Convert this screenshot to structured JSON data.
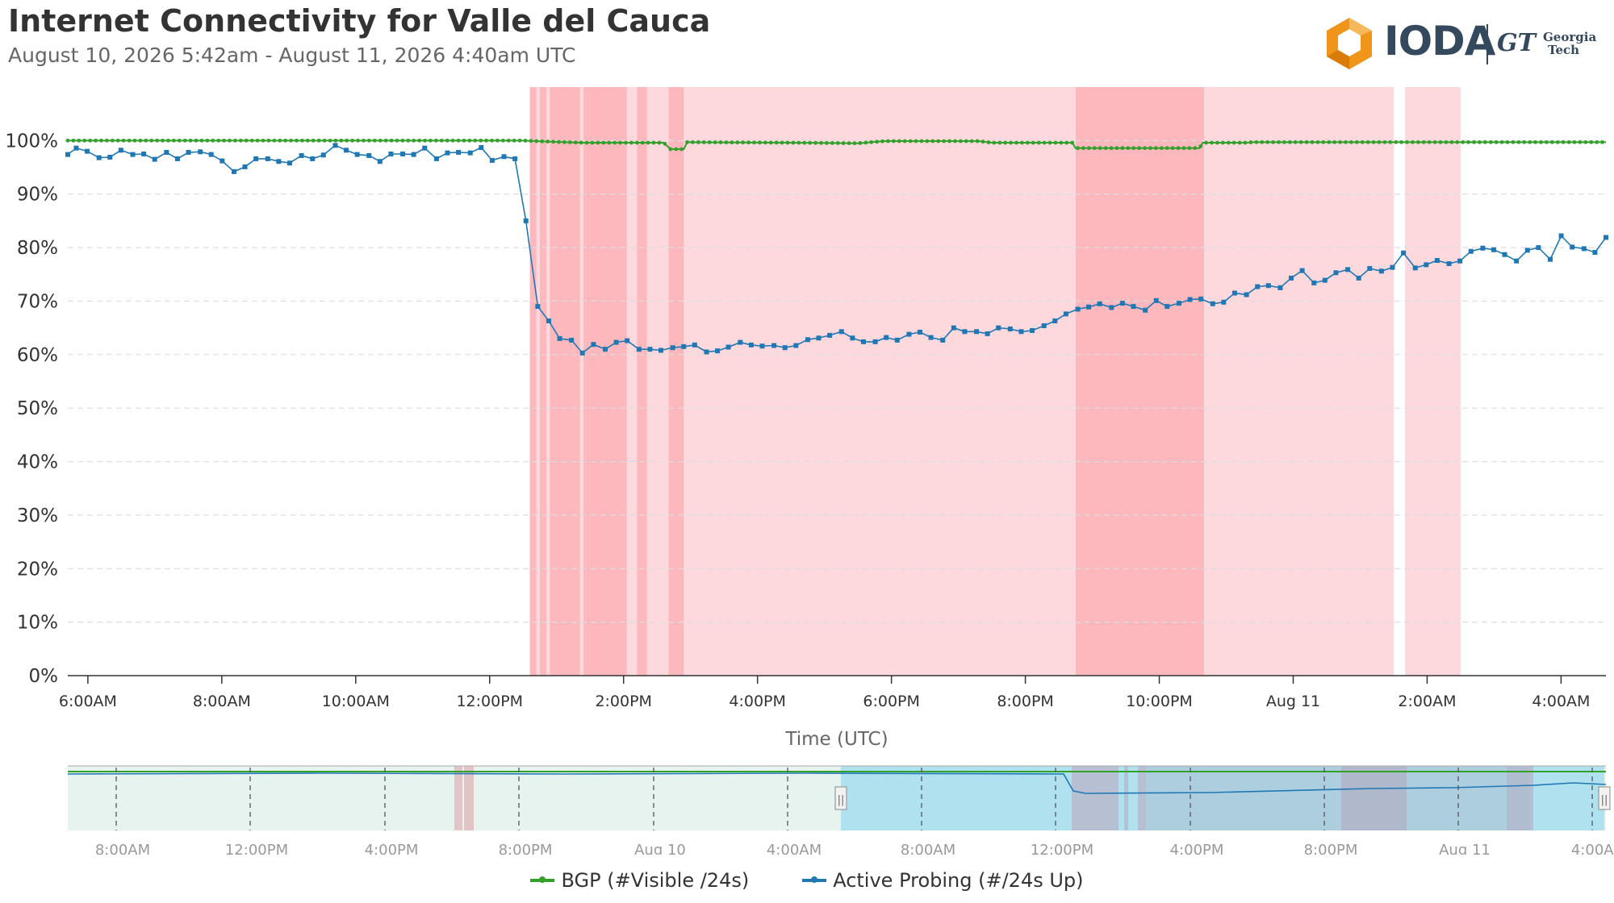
{
  "header": {
    "title": "Internet Connectivity for Valle del Cauca",
    "subtitle": "August 10, 2026 5:42am - August 11, 2026 4:40am UTC",
    "logo_text": "IODA",
    "partner_mark": "GT",
    "partner_name_line1": "Georgia",
    "partner_name_line2": "Tech"
  },
  "colors": {
    "bgp": "#33a02c",
    "active_probing": "#1f78b4",
    "outage_light": "#fdd8dc",
    "outage_dark": "#fdb8be",
    "navigator_band": "#e6f3ef",
    "navigator_selection": "#b0e1ef",
    "gridline": "#dddddd",
    "axis": "#333333",
    "logo_orange": "#f0951a"
  },
  "chart_data": {
    "type": "line",
    "title": "Internet Connectivity for Valle del Cauca",
    "subtitle": "August 10, 2026 5:42am - August 11, 2026 4:40am UTC",
    "xlabel": "Time (UTC)",
    "ylabel": "",
    "x_range_hours": [
      5.7,
      28.67
    ],
    "ylim": [
      0,
      110
    ],
    "y_ticks": [
      0,
      10,
      20,
      30,
      40,
      50,
      60,
      70,
      80,
      90,
      100
    ],
    "y_tick_labels": [
      "0%",
      "10%",
      "20%",
      "30%",
      "40%",
      "50%",
      "60%",
      "70%",
      "80%",
      "90%",
      "100%"
    ],
    "x_ticks": [
      6,
      8,
      10,
      12,
      14,
      16,
      18,
      20,
      22,
      24,
      26,
      28
    ],
    "x_tick_labels": [
      "6:00AM",
      "8:00AM",
      "10:00AM",
      "12:00PM",
      "2:00PM",
      "4:00PM",
      "6:00PM",
      "8:00PM",
      "10:00PM",
      "Aug 11",
      "2:00AM",
      "4:00AM"
    ],
    "grid": true,
    "legend_position": "bottom-center",
    "series": [
      {
        "name": "BGP (#Visible /24s)",
        "color": "#33a02c",
        "segments": [
          [
            5.7,
            100
          ],
          [
            12.5,
            100
          ],
          [
            12.9,
            99.8
          ],
          [
            13.4,
            99.6
          ],
          [
            14.6,
            99.6
          ],
          [
            14.7,
            98.4
          ],
          [
            14.9,
            98.4
          ],
          [
            14.95,
            99.7
          ],
          [
            16.5,
            99.6
          ],
          [
            17.5,
            99.5
          ],
          [
            17.9,
            99.9
          ],
          [
            19.3,
            99.9
          ],
          [
            19.5,
            99.6
          ],
          [
            20.7,
            99.6
          ],
          [
            20.75,
            98.6
          ],
          [
            22.6,
            98.6
          ],
          [
            22.65,
            99.6
          ],
          [
            23.3,
            99.6
          ],
          [
            23.4,
            99.7
          ],
          [
            28.67,
            99.7
          ]
        ]
      },
      {
        "name": "Active Probing (#/24s Up)",
        "color": "#1f78b4",
        "points": [
          [
            5.7,
            97.4
          ],
          [
            5.8,
            98.6
          ],
          [
            5.93,
            98.0
          ],
          [
            6.07,
            96.8
          ],
          [
            6.2,
            96.9
          ],
          [
            6.33,
            98.2
          ],
          [
            6.47,
            97.4
          ],
          [
            6.6,
            97.5
          ],
          [
            6.73,
            96.5
          ],
          [
            6.87,
            97.8
          ],
          [
            7.0,
            96.6
          ],
          [
            7.13,
            97.8
          ],
          [
            7.27,
            97.9
          ],
          [
            7.4,
            97.4
          ],
          [
            7.53,
            96.2
          ],
          [
            7.67,
            94.2
          ],
          [
            7.8,
            95.1
          ],
          [
            7.93,
            96.6
          ],
          [
            8.07,
            96.6
          ],
          [
            8.2,
            96.1
          ],
          [
            8.33,
            95.8
          ],
          [
            8.47,
            97.2
          ],
          [
            8.6,
            96.6
          ],
          [
            8.73,
            97.3
          ],
          [
            8.87,
            99.1
          ],
          [
            9.0,
            98.2
          ],
          [
            9.13,
            97.4
          ],
          [
            9.27,
            97.2
          ],
          [
            9.4,
            96.1
          ],
          [
            9.53,
            97.5
          ],
          [
            9.67,
            97.5
          ],
          [
            9.8,
            97.4
          ],
          [
            9.93,
            98.6
          ],
          [
            10.07,
            96.6
          ],
          [
            10.2,
            97.7
          ],
          [
            10.33,
            97.8
          ],
          [
            10.47,
            97.7
          ],
          [
            10.6,
            98.7
          ],
          [
            10.73,
            96.3
          ],
          [
            10.87,
            97.0
          ],
          [
            11.0,
            96.6
          ],
          [
            11.13,
            85.0
          ],
          [
            11.27,
            69.0
          ],
          [
            11.4,
            66.3
          ],
          [
            11.53,
            63.0
          ],
          [
            11.67,
            62.7
          ],
          [
            11.8,
            60.3
          ],
          [
            11.93,
            61.9
          ],
          [
            12.07,
            61.0
          ],
          [
            12.2,
            62.3
          ],
          [
            12.33,
            62.6
          ],
          [
            12.47,
            61.0
          ],
          [
            12.6,
            61.0
          ],
          [
            12.73,
            60.8
          ],
          [
            12.87,
            61.3
          ],
          [
            13.0,
            61.5
          ],
          [
            13.13,
            61.8
          ],
          [
            13.27,
            60.5
          ],
          [
            13.4,
            60.7
          ],
          [
            13.53,
            61.4
          ],
          [
            13.67,
            62.3
          ],
          [
            13.8,
            61.8
          ],
          [
            13.93,
            61.6
          ],
          [
            14.07,
            61.7
          ],
          [
            14.2,
            61.3
          ],
          [
            14.33,
            61.7
          ],
          [
            14.47,
            62.8
          ],
          [
            14.6,
            63.1
          ],
          [
            14.73,
            63.6
          ],
          [
            14.87,
            64.3
          ],
          [
            15.0,
            63.1
          ],
          [
            15.13,
            62.4
          ],
          [
            15.27,
            62.4
          ],
          [
            15.4,
            63.2
          ],
          [
            15.53,
            62.7
          ],
          [
            15.67,
            63.8
          ],
          [
            15.8,
            64.2
          ],
          [
            15.93,
            63.2
          ],
          [
            16.07,
            62.7
          ],
          [
            16.2,
            65.0
          ],
          [
            16.33,
            64.3
          ],
          [
            16.47,
            64.3
          ],
          [
            16.6,
            63.9
          ],
          [
            16.73,
            65.0
          ],
          [
            16.87,
            64.8
          ],
          [
            17.0,
            64.3
          ],
          [
            17.13,
            64.5
          ],
          [
            17.27,
            65.4
          ],
          [
            17.4,
            66.3
          ],
          [
            17.53,
            67.6
          ],
          [
            17.67,
            68.5
          ],
          [
            17.8,
            68.9
          ],
          [
            17.93,
            69.5
          ],
          [
            18.07,
            68.8
          ],
          [
            18.2,
            69.6
          ],
          [
            18.33,
            69.0
          ],
          [
            18.47,
            68.3
          ],
          [
            18.6,
            70.1
          ],
          [
            18.73,
            69.0
          ],
          [
            18.87,
            69.6
          ],
          [
            19.0,
            70.3
          ],
          [
            19.13,
            70.4
          ],
          [
            19.27,
            69.5
          ],
          [
            19.4,
            69.8
          ],
          [
            19.53,
            71.5
          ],
          [
            19.67,
            71.2
          ],
          [
            19.8,
            72.7
          ],
          [
            19.93,
            72.9
          ],
          [
            20.07,
            72.5
          ],
          [
            20.2,
            74.3
          ],
          [
            20.33,
            75.7
          ],
          [
            20.47,
            73.4
          ],
          [
            20.6,
            73.9
          ],
          [
            20.73,
            75.3
          ],
          [
            20.87,
            75.9
          ],
          [
            21.0,
            74.3
          ],
          [
            21.13,
            76.1
          ],
          [
            21.27,
            75.6
          ],
          [
            21.4,
            76.3
          ],
          [
            21.53,
            79.0
          ],
          [
            21.67,
            76.2
          ],
          [
            21.8,
            76.8
          ],
          [
            21.93,
            77.6
          ],
          [
            22.07,
            77.0
          ],
          [
            22.2,
            77.5
          ],
          [
            22.33,
            79.3
          ],
          [
            22.47,
            79.9
          ],
          [
            22.6,
            79.6
          ],
          [
            22.73,
            78.7
          ],
          [
            22.87,
            77.5
          ],
          [
            23.0,
            79.5
          ],
          [
            23.13,
            80.0
          ],
          [
            23.27,
            77.8
          ],
          [
            23.4,
            82.2
          ],
          [
            23.53,
            80.1
          ],
          [
            23.67,
            79.8
          ],
          [
            23.8,
            79.1
          ],
          [
            23.93,
            81.9
          ]
        ]
      }
    ],
    "outage_regions": [
      {
        "start": 12.6,
        "end": 12.7,
        "level": "dark"
      },
      {
        "start": 12.7,
        "end": 12.75,
        "level": "light"
      },
      {
        "start": 12.75,
        "end": 12.85,
        "level": "dark"
      },
      {
        "start": 12.85,
        "end": 12.9,
        "level": "light"
      },
      {
        "start": 12.9,
        "end": 13.35,
        "level": "dark"
      },
      {
        "start": 13.35,
        "end": 13.4,
        "level": "light"
      },
      {
        "start": 13.4,
        "end": 14.05,
        "level": "dark"
      },
      {
        "start": 14.05,
        "end": 14.2,
        "level": "light"
      },
      {
        "start": 14.2,
        "end": 14.35,
        "level": "dark"
      },
      {
        "start": 14.35,
        "end": 14.67,
        "level": "light"
      },
      {
        "start": 14.67,
        "end": 14.9,
        "level": "dark"
      },
      {
        "start": 14.9,
        "end": 20.75,
        "level": "light"
      },
      {
        "start": 20.75,
        "end": 22.67,
        "level": "dark"
      },
      {
        "start": 22.67,
        "end": 25.5,
        "level": "light"
      },
      {
        "start": 25.67,
        "end": 26.5,
        "level": "light"
      }
    ]
  },
  "navigator": {
    "x_tick_labels": [
      "8:00AM",
      "12:00PM",
      "4:00PM",
      "8:00PM",
      "Aug 10",
      "4:00AM",
      "8:00AM",
      "12:00PM",
      "4:00PM",
      "8:00PM",
      "Aug 11",
      "4:00AM"
    ],
    "left_handle_label": "||",
    "right_handle_label": "||"
  },
  "legend": {
    "items": [
      {
        "label": "BGP (#Visible /24s)",
        "color": "#33a02c"
      },
      {
        "label": "Active Probing (#/24s Up)",
        "color": "#1f78b4"
      }
    ]
  }
}
